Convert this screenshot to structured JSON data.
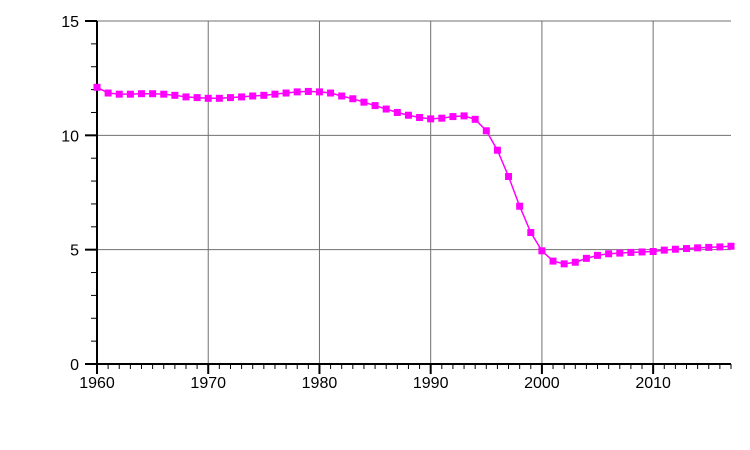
{
  "chart_data": {
    "type": "line",
    "title": "",
    "xlabel": "",
    "ylabel": "",
    "xlim": [
      1960,
      2017
    ],
    "ylim": [
      0,
      15
    ],
    "grid": true,
    "x_ticks": [
      {
        "value": 1960,
        "label": "1960"
      },
      {
        "value": 1970,
        "label": "1970"
      },
      {
        "value": 1980,
        "label": "1980"
      },
      {
        "value": 1990,
        "label": "1990"
      },
      {
        "value": 2000,
        "label": "2000"
      },
      {
        "value": 2010,
        "label": "2010"
      }
    ],
    "y_ticks": [
      {
        "value": 0,
        "label": "0"
      },
      {
        "value": 5,
        "label": "5"
      },
      {
        "value": 10,
        "label": "10"
      },
      {
        "value": 15,
        "label": "15"
      }
    ],
    "series": [
      {
        "color": "#ff00ff",
        "x": [
          1960,
          1961,
          1962,
          1963,
          1964,
          1965,
          1966,
          1967,
          1968,
          1969,
          1970,
          1971,
          1972,
          1973,
          1974,
          1975,
          1976,
          1977,
          1978,
          1979,
          1980,
          1981,
          1982,
          1983,
          1984,
          1985,
          1986,
          1987,
          1988,
          1989,
          1990,
          1991,
          1992,
          1993,
          1994,
          1995,
          1996,
          1997,
          1998,
          1999,
          2000,
          2001,
          2002,
          2003,
          2004,
          2005,
          2006,
          2007,
          2008,
          2009,
          2010,
          2011,
          2012,
          2013,
          2014,
          2015,
          2016,
          2017
        ],
        "values": [
          12.1,
          11.85,
          11.8,
          11.8,
          11.82,
          11.82,
          11.8,
          11.75,
          11.68,
          11.65,
          11.62,
          11.62,
          11.65,
          11.68,
          11.72,
          11.75,
          11.8,
          11.85,
          11.9,
          11.92,
          11.9,
          11.85,
          11.72,
          11.6,
          11.45,
          11.3,
          11.15,
          11.0,
          10.88,
          10.78,
          10.72,
          10.75,
          10.82,
          10.85,
          10.7,
          10.2,
          9.35,
          8.2,
          6.9,
          5.75,
          4.95,
          4.5,
          4.38,
          4.45,
          4.62,
          4.75,
          4.82,
          4.85,
          4.88,
          4.9,
          4.92,
          4.98,
          5.02,
          5.05,
          5.08,
          5.1,
          5.12,
          5.15
        ]
      }
    ]
  }
}
